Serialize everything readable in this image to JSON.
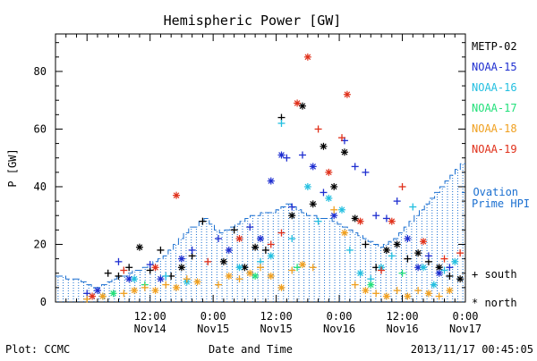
{
  "chart_data": {
    "type": "scatter",
    "title": "Hemispheric Power [GW]",
    "xlabel": "Date and Time",
    "ylabel": "P [GW]",
    "xlim": [
      "2013-11-13T18:00",
      "2013-11-17T00:00"
    ],
    "ylim": [
      0,
      93
    ],
    "yticks": [
      0,
      20,
      40,
      60,
      80
    ],
    "xticks": [
      {
        "t": "2013-11-14T12:00",
        "line1": "12:00",
        "line2": "Nov14"
      },
      {
        "t": "2013-11-15T00:00",
        "line1": "0:00",
        "line2": "Nov15"
      },
      {
        "t": "2013-11-15T12:00",
        "line1": "12:00",
        "line2": "Nov15"
      },
      {
        "t": "2013-11-16T00:00",
        "line1": "0:00",
        "line2": "Nov16"
      },
      {
        "t": "2013-11-16T12:00",
        "line1": "12:00",
        "line2": "Nov16"
      },
      {
        "t": "2013-11-17T00:00",
        "line1": "0:00",
        "line2": "Nov17"
      }
    ],
    "legend_position": "right",
    "series": [
      {
        "name": "METP-02",
        "color": "#000000",
        "points": [
          {
            "t": "2013-11-14T04:00",
            "v": 10,
            "h": "s"
          },
          {
            "t": "2013-11-14T06:00",
            "v": 9,
            "h": "s"
          },
          {
            "t": "2013-11-14T08:00",
            "v": 12,
            "h": "s"
          },
          {
            "t": "2013-11-14T10:00",
            "v": 19,
            "h": "n"
          },
          {
            "t": "2013-11-14T12:00",
            "v": 11,
            "h": "s"
          },
          {
            "t": "2013-11-14T14:00",
            "v": 18,
            "h": "s"
          },
          {
            "t": "2013-11-14T16:00",
            "v": 9,
            "h": "s"
          },
          {
            "t": "2013-11-14T18:00",
            "v": 12,
            "h": "n"
          },
          {
            "t": "2013-11-14T20:00",
            "v": 16,
            "h": "s"
          },
          {
            "t": "2013-11-14T22:00",
            "v": 28,
            "h": "s"
          },
          {
            "t": "2013-11-15T02:00",
            "v": 14,
            "h": "n"
          },
          {
            "t": "2013-11-15T04:00",
            "v": 25,
            "h": "s"
          },
          {
            "t": "2013-11-15T06:00",
            "v": 12,
            "h": "n"
          },
          {
            "t": "2013-11-15T08:00",
            "v": 19,
            "h": "n"
          },
          {
            "t": "2013-11-15T10:00",
            "v": 18,
            "h": "s"
          },
          {
            "t": "2013-11-15T13:00",
            "v": 64,
            "h": "s"
          },
          {
            "t": "2013-11-15T15:00",
            "v": 30,
            "h": "n"
          },
          {
            "t": "2013-11-15T17:00",
            "v": 68,
            "h": "n"
          },
          {
            "t": "2013-11-15T19:00",
            "v": 34,
            "h": "n"
          },
          {
            "t": "2013-11-15T21:00",
            "v": 54,
            "h": "n"
          },
          {
            "t": "2013-11-15T23:00",
            "v": 40,
            "h": "n"
          },
          {
            "t": "2013-11-16T01:00",
            "v": 52,
            "h": "n"
          },
          {
            "t": "2013-11-16T03:00",
            "v": 29,
            "h": "n"
          },
          {
            "t": "2013-11-16T05:00",
            "v": 20,
            "h": "s"
          },
          {
            "t": "2013-11-16T07:00",
            "v": 12,
            "h": "s"
          },
          {
            "t": "2013-11-16T09:00",
            "v": 18,
            "h": "n"
          },
          {
            "t": "2013-11-16T11:00",
            "v": 20,
            "h": "n"
          },
          {
            "t": "2013-11-16T13:00",
            "v": 15,
            "h": "s"
          },
          {
            "t": "2013-11-16T15:00",
            "v": 17,
            "h": "n"
          },
          {
            "t": "2013-11-16T17:00",
            "v": 14,
            "h": "s"
          },
          {
            "t": "2013-11-16T19:00",
            "v": 12,
            "h": "n"
          },
          {
            "t": "2013-11-16T21:00",
            "v": 9,
            "h": "s"
          },
          {
            "t": "2013-11-16T23:00",
            "v": 8,
            "h": "n"
          }
        ]
      },
      {
        "name": "NOAA-15",
        "color": "#1f2fd0",
        "points": [
          {
            "t": "2013-11-14T00:00",
            "v": 3,
            "h": "s"
          },
          {
            "t": "2013-11-14T02:00",
            "v": 4,
            "h": "n"
          },
          {
            "t": "2013-11-14T06:00",
            "v": 14,
            "h": "s"
          },
          {
            "t": "2013-11-14T08:00",
            "v": 8,
            "h": "n"
          },
          {
            "t": "2013-11-14T12:00",
            "v": 13,
            "h": "s"
          },
          {
            "t": "2013-11-14T14:00",
            "v": 8,
            "h": "n"
          },
          {
            "t": "2013-11-14T18:00",
            "v": 15,
            "h": "n"
          },
          {
            "t": "2013-11-14T20:00",
            "v": 18,
            "h": "s"
          },
          {
            "t": "2013-11-15T01:00",
            "v": 22,
            "h": "s"
          },
          {
            "t": "2013-11-15T03:00",
            "v": 18,
            "h": "n"
          },
          {
            "t": "2013-11-15T07:00",
            "v": 26,
            "h": "s"
          },
          {
            "t": "2013-11-15T09:00",
            "v": 22,
            "h": "n"
          },
          {
            "t": "2013-11-15T11:00",
            "v": 42,
            "h": "n"
          },
          {
            "t": "2013-11-15T13:00",
            "v": 51,
            "h": "n"
          },
          {
            "t": "2013-11-15T14:00",
            "v": 50,
            "h": "s"
          },
          {
            "t": "2013-11-15T15:00",
            "v": 33,
            "h": "s"
          },
          {
            "t": "2013-11-15T17:00",
            "v": 51,
            "h": "s"
          },
          {
            "t": "2013-11-15T19:00",
            "v": 47,
            "h": "n"
          },
          {
            "t": "2013-11-15T21:00",
            "v": 38,
            "h": "s"
          },
          {
            "t": "2013-11-15T23:00",
            "v": 30,
            "h": "n"
          },
          {
            "t": "2013-11-16T01:00",
            "v": 56,
            "h": "s"
          },
          {
            "t": "2013-11-16T03:00",
            "v": 47,
            "h": "s"
          },
          {
            "t": "2013-11-16T05:00",
            "v": 45,
            "h": "s"
          },
          {
            "t": "2013-11-16T07:00",
            "v": 30,
            "h": "s"
          },
          {
            "t": "2013-11-16T09:00",
            "v": 29,
            "h": "s"
          },
          {
            "t": "2013-11-16T11:00",
            "v": 35,
            "h": "s"
          },
          {
            "t": "2013-11-16T13:00",
            "v": 22,
            "h": "n"
          },
          {
            "t": "2013-11-16T15:00",
            "v": 12,
            "h": "n"
          },
          {
            "t": "2013-11-16T17:00",
            "v": 16,
            "h": "s"
          },
          {
            "t": "2013-11-16T19:00",
            "v": 10,
            "h": "n"
          },
          {
            "t": "2013-11-16T21:00",
            "v": 12,
            "h": "s"
          }
        ]
      },
      {
        "name": "NOAA-16",
        "color": "#22bfe0",
        "points": [
          {
            "t": "2013-11-14T03:00",
            "v": 2,
            "h": "s"
          },
          {
            "t": "2013-11-14T09:00",
            "v": 8,
            "h": "n"
          },
          {
            "t": "2013-11-14T15:00",
            "v": 9,
            "h": "s"
          },
          {
            "t": "2013-11-14T19:00",
            "v": 7,
            "h": "n"
          },
          {
            "t": "2013-11-15T05:00",
            "v": 12,
            "h": "n"
          },
          {
            "t": "2013-11-15T09:00",
            "v": 14,
            "h": "s"
          },
          {
            "t": "2013-11-15T11:00",
            "v": 16,
            "h": "n"
          },
          {
            "t": "2013-11-15T13:00",
            "v": 62,
            "h": "s"
          },
          {
            "t": "2013-11-15T15:00",
            "v": 22,
            "h": "s"
          },
          {
            "t": "2013-11-15T18:00",
            "v": 40,
            "h": "n"
          },
          {
            "t": "2013-11-15T20:00",
            "v": 28,
            "h": "s"
          },
          {
            "t": "2013-11-15T22:00",
            "v": 36,
            "h": "n"
          },
          {
            "t": "2013-11-16T00:30",
            "v": 32,
            "h": "n"
          },
          {
            "t": "2013-11-16T02:00",
            "v": 18,
            "h": "s"
          },
          {
            "t": "2013-11-16T04:00",
            "v": 10,
            "h": "n"
          },
          {
            "t": "2013-11-16T06:00",
            "v": 8,
            "h": "s"
          },
          {
            "t": "2013-11-16T08:00",
            "v": 12,
            "h": "n"
          },
          {
            "t": "2013-11-16T10:00",
            "v": 16,
            "h": "s"
          },
          {
            "t": "2013-11-16T14:00",
            "v": 33,
            "h": "s"
          },
          {
            "t": "2013-11-16T16:00",
            "v": 12,
            "h": "n"
          },
          {
            "t": "2013-11-16T18:00",
            "v": 6,
            "h": "n"
          },
          {
            "t": "2013-11-16T20:00",
            "v": 11,
            "h": "s"
          },
          {
            "t": "2013-11-16T22:00",
            "v": 14,
            "h": "n"
          }
        ]
      },
      {
        "name": "NOAA-17",
        "color": "#22e07a",
        "points": [
          {
            "t": "2013-11-14T05:00",
            "v": 3,
            "h": "n"
          },
          {
            "t": "2013-11-14T11:00",
            "v": 6,
            "h": "s"
          },
          {
            "t": "2013-11-15T08:00",
            "v": 9,
            "h": "n"
          },
          {
            "t": "2013-11-15T16:00",
            "v": 12,
            "h": "s"
          },
          {
            "t": "2013-11-16T06:00",
            "v": 6,
            "h": "n"
          },
          {
            "t": "2013-11-16T12:00",
            "v": 10,
            "h": "s"
          }
        ]
      },
      {
        "name": "NOAA-18",
        "color": "#f0a020",
        "points": [
          {
            "t": "2013-11-14T00:00",
            "v": 1,
            "h": "s"
          },
          {
            "t": "2013-11-14T03:00",
            "v": 2,
            "h": "n"
          },
          {
            "t": "2013-11-14T07:00",
            "v": 3,
            "h": "s"
          },
          {
            "t": "2013-11-14T09:00",
            "v": 4,
            "h": "n"
          },
          {
            "t": "2013-11-14T11:00",
            "v": 5,
            "h": "s"
          },
          {
            "t": "2013-11-14T13:00",
            "v": 4,
            "h": "n"
          },
          {
            "t": "2013-11-14T15:00",
            "v": 6,
            "h": "s"
          },
          {
            "t": "2013-11-14T17:00",
            "v": 5,
            "h": "n"
          },
          {
            "t": "2013-11-14T19:00",
            "v": 8,
            "h": "s"
          },
          {
            "t": "2013-11-14T21:00",
            "v": 7,
            "h": "n"
          },
          {
            "t": "2013-11-15T01:00",
            "v": 6,
            "h": "s"
          },
          {
            "t": "2013-11-15T03:00",
            "v": 9,
            "h": "n"
          },
          {
            "t": "2013-11-15T05:00",
            "v": 8,
            "h": "s"
          },
          {
            "t": "2013-11-15T07:00",
            "v": 10,
            "h": "n"
          },
          {
            "t": "2013-11-15T09:00",
            "v": 12,
            "h": "s"
          },
          {
            "t": "2013-11-15T11:00",
            "v": 9,
            "h": "n"
          },
          {
            "t": "2013-11-15T13:00",
            "v": 5,
            "h": "n"
          },
          {
            "t": "2013-11-15T15:00",
            "v": 11,
            "h": "s"
          },
          {
            "t": "2013-11-15T17:00",
            "v": 13,
            "h": "n"
          },
          {
            "t": "2013-11-15T19:00",
            "v": 12,
            "h": "s"
          },
          {
            "t": "2013-11-15T23:00",
            "v": 32,
            "h": "s"
          },
          {
            "t": "2013-11-16T01:00",
            "v": 24,
            "h": "n"
          },
          {
            "t": "2013-11-16T03:00",
            "v": 6,
            "h": "s"
          },
          {
            "t": "2013-11-16T05:00",
            "v": 4,
            "h": "n"
          },
          {
            "t": "2013-11-16T07:00",
            "v": 3,
            "h": "s"
          },
          {
            "t": "2013-11-16T09:00",
            "v": 2,
            "h": "n"
          },
          {
            "t": "2013-11-16T11:00",
            "v": 4,
            "h": "s"
          },
          {
            "t": "2013-11-16T13:00",
            "v": 2,
            "h": "n"
          },
          {
            "t": "2013-11-16T15:00",
            "v": 4,
            "h": "s"
          },
          {
            "t": "2013-11-16T17:00",
            "v": 3,
            "h": "n"
          },
          {
            "t": "2013-11-16T19:00",
            "v": 2,
            "h": "s"
          },
          {
            "t": "2013-11-16T21:00",
            "v": 4,
            "h": "n"
          }
        ]
      },
      {
        "name": "NOAA-19",
        "color": "#e0301a",
        "points": [
          {
            "t": "2013-11-14T01:00",
            "v": 2,
            "h": "n"
          },
          {
            "t": "2013-11-14T07:00",
            "v": 11,
            "h": "s"
          },
          {
            "t": "2013-11-14T13:00",
            "v": 12,
            "h": "n"
          },
          {
            "t": "2013-11-14T17:00",
            "v": 37,
            "h": "n"
          },
          {
            "t": "2013-11-14T23:00",
            "v": 14,
            "h": "s"
          },
          {
            "t": "2013-11-15T05:00",
            "v": 22,
            "h": "n"
          },
          {
            "t": "2013-11-15T11:00",
            "v": 20,
            "h": "s"
          },
          {
            "t": "2013-11-15T13:00",
            "v": 24,
            "h": "s"
          },
          {
            "t": "2013-11-15T16:00",
            "v": 69,
            "h": "n"
          },
          {
            "t": "2013-11-15T18:00",
            "v": 85,
            "h": "n"
          },
          {
            "t": "2013-11-15T20:00",
            "v": 60,
            "h": "s"
          },
          {
            "t": "2013-11-15T22:00",
            "v": 45,
            "h": "n"
          },
          {
            "t": "2013-11-16T00:30",
            "v": 57,
            "h": "s"
          },
          {
            "t": "2013-11-16T01:30",
            "v": 72,
            "h": "n"
          },
          {
            "t": "2013-11-16T04:00",
            "v": 28,
            "h": "n"
          },
          {
            "t": "2013-11-16T08:00",
            "v": 11,
            "h": "s"
          },
          {
            "t": "2013-11-16T10:00",
            "v": 28,
            "h": "n"
          },
          {
            "t": "2013-11-16T12:00",
            "v": 40,
            "h": "s"
          },
          {
            "t": "2013-11-16T16:00",
            "v": 21,
            "h": "n"
          },
          {
            "t": "2013-11-16T20:00",
            "v": 15,
            "h": "s"
          },
          {
            "t": "2013-11-16T23:00",
            "v": 17,
            "h": "s"
          }
        ]
      }
    ],
    "ovation": {
      "name": "Ovation Prime HPI",
      "legend_line1": "- Ovation",
      "legend_line2": "Prime HPI",
      "color": "#1a6fd0",
      "values": [
        9,
        9,
        8,
        8,
        8,
        7,
        6,
        5,
        5,
        6,
        7,
        8,
        9,
        9,
        10,
        11,
        11,
        12,
        13,
        14,
        15,
        16,
        18,
        20,
        22,
        24,
        26,
        26,
        28,
        29,
        27,
        25,
        24,
        25,
        26,
        27,
        28,
        29,
        30,
        30,
        31,
        31,
        31,
        32,
        33,
        34,
        33,
        32,
        31,
        30,
        30,
        29,
        29,
        29,
        28,
        27,
        26,
        25,
        24,
        23,
        22,
        21,
        20,
        19,
        20,
        21,
        22,
        24,
        26,
        28,
        30,
        32,
        34,
        36,
        38,
        40,
        42,
        44,
        46,
        48
      ]
    },
    "markers_legend": {
      "south": "+ south",
      "north": "* north"
    }
  },
  "footer": {
    "plot_by": "Plot: CCMC",
    "timestamp": "2013/11/17 00:45:05"
  }
}
